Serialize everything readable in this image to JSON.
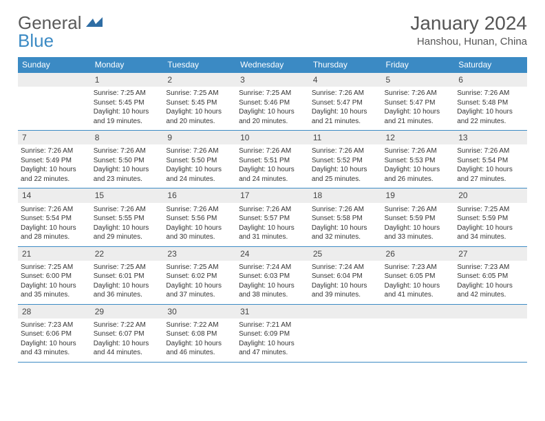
{
  "brand": {
    "part1": "General",
    "part2": "Blue"
  },
  "title": "January 2024",
  "location": "Hanshou, Hunan, China",
  "colors": {
    "accent": "#3b8ac4",
    "dayRowBg": "#ededed",
    "text": "#333333",
    "titleText": "#555555"
  },
  "dow": [
    "Sunday",
    "Monday",
    "Tuesday",
    "Wednesday",
    "Thursday",
    "Friday",
    "Saturday"
  ],
  "weeks": [
    [
      null,
      {
        "n": "1",
        "sr": "Sunrise: 7:25 AM",
        "ss": "Sunset: 5:45 PM",
        "d1": "Daylight: 10 hours",
        "d2": "and 19 minutes."
      },
      {
        "n": "2",
        "sr": "Sunrise: 7:25 AM",
        "ss": "Sunset: 5:45 PM",
        "d1": "Daylight: 10 hours",
        "d2": "and 20 minutes."
      },
      {
        "n": "3",
        "sr": "Sunrise: 7:25 AM",
        "ss": "Sunset: 5:46 PM",
        "d1": "Daylight: 10 hours",
        "d2": "and 20 minutes."
      },
      {
        "n": "4",
        "sr": "Sunrise: 7:26 AM",
        "ss": "Sunset: 5:47 PM",
        "d1": "Daylight: 10 hours",
        "d2": "and 21 minutes."
      },
      {
        "n": "5",
        "sr": "Sunrise: 7:26 AM",
        "ss": "Sunset: 5:47 PM",
        "d1": "Daylight: 10 hours",
        "d2": "and 21 minutes."
      },
      {
        "n": "6",
        "sr": "Sunrise: 7:26 AM",
        "ss": "Sunset: 5:48 PM",
        "d1": "Daylight: 10 hours",
        "d2": "and 22 minutes."
      }
    ],
    [
      {
        "n": "7",
        "sr": "Sunrise: 7:26 AM",
        "ss": "Sunset: 5:49 PM",
        "d1": "Daylight: 10 hours",
        "d2": "and 22 minutes."
      },
      {
        "n": "8",
        "sr": "Sunrise: 7:26 AM",
        "ss": "Sunset: 5:50 PM",
        "d1": "Daylight: 10 hours",
        "d2": "and 23 minutes."
      },
      {
        "n": "9",
        "sr": "Sunrise: 7:26 AM",
        "ss": "Sunset: 5:50 PM",
        "d1": "Daylight: 10 hours",
        "d2": "and 24 minutes."
      },
      {
        "n": "10",
        "sr": "Sunrise: 7:26 AM",
        "ss": "Sunset: 5:51 PM",
        "d1": "Daylight: 10 hours",
        "d2": "and 24 minutes."
      },
      {
        "n": "11",
        "sr": "Sunrise: 7:26 AM",
        "ss": "Sunset: 5:52 PM",
        "d1": "Daylight: 10 hours",
        "d2": "and 25 minutes."
      },
      {
        "n": "12",
        "sr": "Sunrise: 7:26 AM",
        "ss": "Sunset: 5:53 PM",
        "d1": "Daylight: 10 hours",
        "d2": "and 26 minutes."
      },
      {
        "n": "13",
        "sr": "Sunrise: 7:26 AM",
        "ss": "Sunset: 5:54 PM",
        "d1": "Daylight: 10 hours",
        "d2": "and 27 minutes."
      }
    ],
    [
      {
        "n": "14",
        "sr": "Sunrise: 7:26 AM",
        "ss": "Sunset: 5:54 PM",
        "d1": "Daylight: 10 hours",
        "d2": "and 28 minutes."
      },
      {
        "n": "15",
        "sr": "Sunrise: 7:26 AM",
        "ss": "Sunset: 5:55 PM",
        "d1": "Daylight: 10 hours",
        "d2": "and 29 minutes."
      },
      {
        "n": "16",
        "sr": "Sunrise: 7:26 AM",
        "ss": "Sunset: 5:56 PM",
        "d1": "Daylight: 10 hours",
        "d2": "and 30 minutes."
      },
      {
        "n": "17",
        "sr": "Sunrise: 7:26 AM",
        "ss": "Sunset: 5:57 PM",
        "d1": "Daylight: 10 hours",
        "d2": "and 31 minutes."
      },
      {
        "n": "18",
        "sr": "Sunrise: 7:26 AM",
        "ss": "Sunset: 5:58 PM",
        "d1": "Daylight: 10 hours",
        "d2": "and 32 minutes."
      },
      {
        "n": "19",
        "sr": "Sunrise: 7:26 AM",
        "ss": "Sunset: 5:59 PM",
        "d1": "Daylight: 10 hours",
        "d2": "and 33 minutes."
      },
      {
        "n": "20",
        "sr": "Sunrise: 7:25 AM",
        "ss": "Sunset: 5:59 PM",
        "d1": "Daylight: 10 hours",
        "d2": "and 34 minutes."
      }
    ],
    [
      {
        "n": "21",
        "sr": "Sunrise: 7:25 AM",
        "ss": "Sunset: 6:00 PM",
        "d1": "Daylight: 10 hours",
        "d2": "and 35 minutes."
      },
      {
        "n": "22",
        "sr": "Sunrise: 7:25 AM",
        "ss": "Sunset: 6:01 PM",
        "d1": "Daylight: 10 hours",
        "d2": "and 36 minutes."
      },
      {
        "n": "23",
        "sr": "Sunrise: 7:25 AM",
        "ss": "Sunset: 6:02 PM",
        "d1": "Daylight: 10 hours",
        "d2": "and 37 minutes."
      },
      {
        "n": "24",
        "sr": "Sunrise: 7:24 AM",
        "ss": "Sunset: 6:03 PM",
        "d1": "Daylight: 10 hours",
        "d2": "and 38 minutes."
      },
      {
        "n": "25",
        "sr": "Sunrise: 7:24 AM",
        "ss": "Sunset: 6:04 PM",
        "d1": "Daylight: 10 hours",
        "d2": "and 39 minutes."
      },
      {
        "n": "26",
        "sr": "Sunrise: 7:23 AM",
        "ss": "Sunset: 6:05 PM",
        "d1": "Daylight: 10 hours",
        "d2": "and 41 minutes."
      },
      {
        "n": "27",
        "sr": "Sunrise: 7:23 AM",
        "ss": "Sunset: 6:05 PM",
        "d1": "Daylight: 10 hours",
        "d2": "and 42 minutes."
      }
    ],
    [
      {
        "n": "28",
        "sr": "Sunrise: 7:23 AM",
        "ss": "Sunset: 6:06 PM",
        "d1": "Daylight: 10 hours",
        "d2": "and 43 minutes."
      },
      {
        "n": "29",
        "sr": "Sunrise: 7:22 AM",
        "ss": "Sunset: 6:07 PM",
        "d1": "Daylight: 10 hours",
        "d2": "and 44 minutes."
      },
      {
        "n": "30",
        "sr": "Sunrise: 7:22 AM",
        "ss": "Sunset: 6:08 PM",
        "d1": "Daylight: 10 hours",
        "d2": "and 46 minutes."
      },
      {
        "n": "31",
        "sr": "Sunrise: 7:21 AM",
        "ss": "Sunset: 6:09 PM",
        "d1": "Daylight: 10 hours",
        "d2": "and 47 minutes."
      },
      null,
      null,
      null
    ]
  ]
}
